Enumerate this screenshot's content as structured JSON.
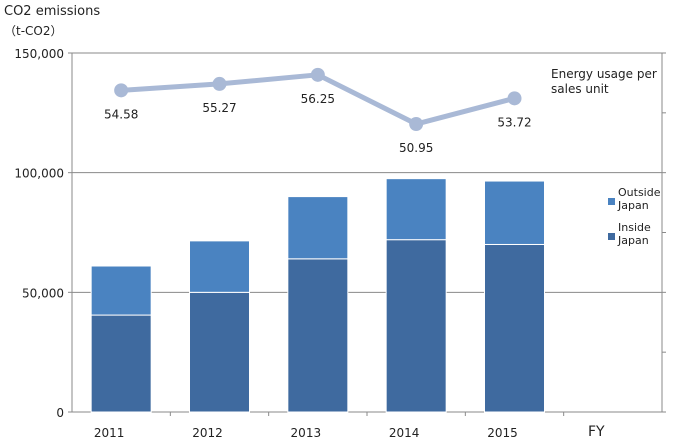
{
  "chart_data": {
    "type": "bar",
    "y_axis_title_line1": "CO2 emissions",
    "y_axis_title_line2": "（t-CO2）",
    "x_axis_unit": "FY",
    "categories": [
      "2011",
      "2012",
      "2013",
      "2014",
      "2015"
    ],
    "y_ticks": [
      0,
      50000,
      100000,
      150000
    ],
    "y_tick_labels": [
      "0",
      "50,000",
      "100,000",
      "150,000"
    ],
    "ylim": [
      0,
      150000
    ],
    "grid": true,
    "stacked": true,
    "series": [
      {
        "name": "Inside Japan",
        "color": "#3f6a9f",
        "values": [
          40500,
          50000,
          64000,
          72000,
          70000
        ]
      },
      {
        "name": "Outside Japan",
        "color": "#4a83c1",
        "values": [
          20500,
          21500,
          26000,
          25500,
          26500
        ]
      }
    ],
    "line_series": {
      "name": "Energy usage per sales unit",
      "name_line1": "Energy usage per",
      "name_line2": "sales unit",
      "color": "#a9b9d6",
      "values": [
        54.58,
        55.27,
        56.25,
        50.95,
        53.72
      ],
      "labels": [
        "54.58",
        "55.27",
        "56.25",
        "50.95",
        "53.72"
      ]
    },
    "legend": [
      {
        "line1": "Outside",
        "line2": "Japan",
        "color": "#4a83c1"
      },
      {
        "line1": "Inside",
        "line2": "Japan",
        "color": "#3f6a9f"
      }
    ]
  }
}
